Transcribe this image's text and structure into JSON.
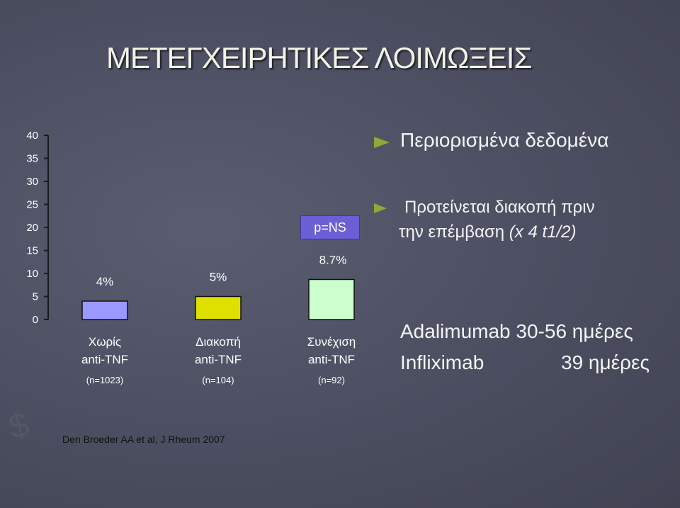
{
  "title": "ΜΕΤΕΓΧΕΙΡΗΤΙΚΕΣ ΛΟΙΜΩΞΕΙΣ",
  "chart_data": {
    "type": "bar",
    "y_ticks": [
      "0",
      "5",
      "10",
      "15",
      "20",
      "25",
      "30",
      "35",
      "40"
    ],
    "ylim": [
      0,
      40
    ],
    "categories": [
      {
        "line1": "Χωρίς",
        "line2": "anti-TNF",
        "n": "(n=1023)"
      },
      {
        "line1": "Διακοπή",
        "line2": "anti-TNF",
        "n": "(n=104)"
      },
      {
        "line1": "Συνέχιση",
        "line2": "anti-TNF",
        "n": "(n=92)"
      }
    ],
    "values": [
      4,
      5,
      8.7
    ],
    "data_labels": [
      "4%",
      "5%",
      "8.7%"
    ],
    "colors": [
      "#9999ff",
      "#e0e000",
      "#ccffcc"
    ],
    "annotation": "p=NS"
  },
  "notes": {
    "bullet1": "Περιορισμένα δεδομένα",
    "bullet2_line1": "Προτείνεται διακοπή πριν",
    "bullet2_line2_prefix": "την επέμβαση ",
    "bullet2_line2_italic": "(x 4 t1/2)",
    "adalimumab": "Adalimumab 30-56 ημέρες",
    "infliximab_name": "Infliximab",
    "infliximab_days": "39 ημέρες"
  },
  "reference": "Den Broeder AA et al, J Rheum 2007"
}
